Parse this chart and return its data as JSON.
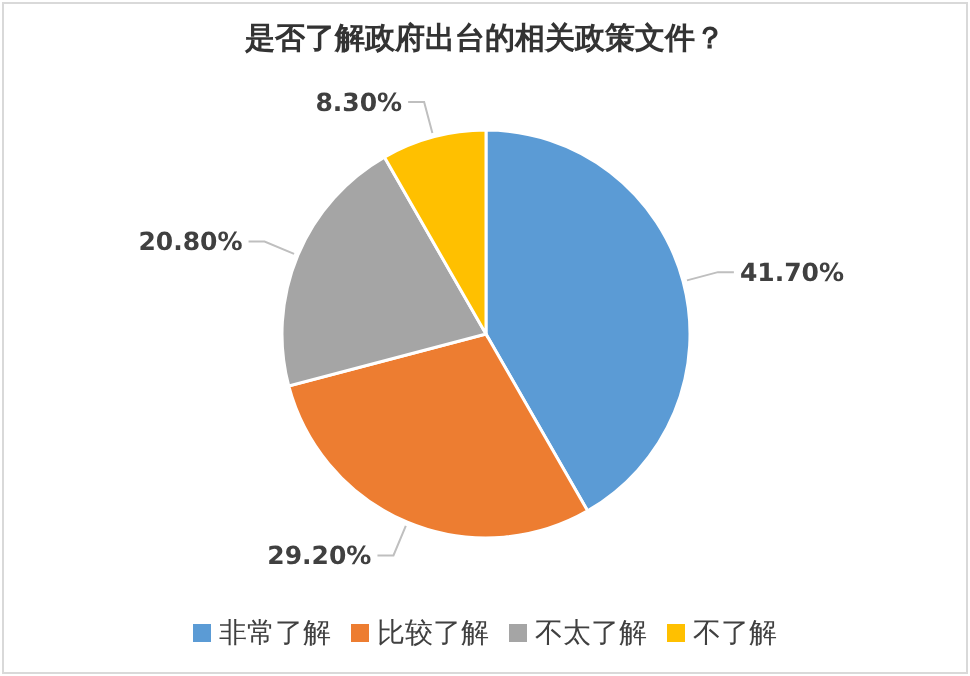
{
  "chart_data": {
    "type": "pie",
    "title": "是否了解政府出台的相关政策文件？",
    "categories": [
      "非常了解",
      "比较了解",
      "不太了解",
      "不了解"
    ],
    "values": [
      41.7,
      29.2,
      20.8,
      8.3
    ],
    "value_labels": [
      "41.70%",
      "29.20%",
      "20.80%",
      "8.30%"
    ],
    "colors": [
      "#5b9bd5",
      "#ed7d31",
      "#a5a5a5",
      "#ffc000"
    ],
    "legend": "bottom"
  }
}
